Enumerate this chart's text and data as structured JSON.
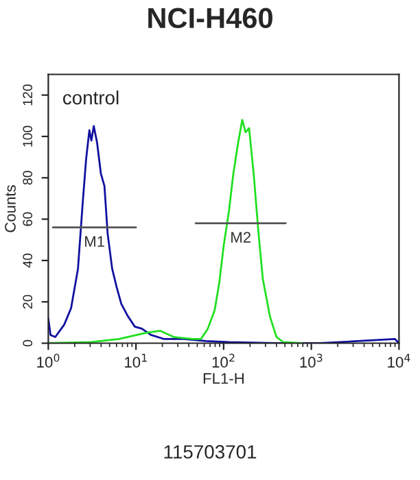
{
  "chart_data": {
    "type": "line",
    "title": "NCI-H460",
    "xlabel": "FL1-H",
    "ylabel": "Counts",
    "log": "x",
    "grid": false,
    "legend": false,
    "marker": "none",
    "line_style": "solid",
    "xlim": [
      1,
      10000
    ],
    "xticks": [
      {
        "value": 1,
        "label": "10$^{0}$"
      },
      {
        "value": 10,
        "label": "10$^{1}$"
      },
      {
        "value": 100,
        "label": "10$^{2}$"
      },
      {
        "value": 1000,
        "label": "10$^{3}$"
      },
      {
        "value": 10000,
        "label": "10$^{4}$"
      }
    ],
    "ylim": [
      0,
      130
    ],
    "yticks": [
      0,
      20,
      40,
      60,
      80,
      100,
      120
    ],
    "series": [
      {
        "color": "#1010a0",
        "x": [
          1.0,
          1.06,
          1.2,
          1.52,
          1.82,
          2.18,
          2.46,
          2.7,
          2.94,
          3.1,
          3.3,
          3.6,
          3.98,
          4.37,
          4.75,
          5.35,
          6.03,
          6.8,
          8.1,
          9.7,
          11.7,
          14.8,
          21,
          35,
          63,
          115,
          380,
          1260,
          9000,
          10000
        ],
        "values": [
          12,
          4,
          3,
          9,
          17,
          36,
          67,
          89,
          103,
          98,
          105,
          97,
          82,
          76,
          53,
          36,
          27,
          19,
          13,
          8,
          7,
          4,
          2,
          2,
          1,
          0.5,
          0,
          0,
          2,
          0
        ]
      },
      {
        "color": "#20e020",
        "x": [
          1.0,
          3.1,
          6.4,
          13,
          19,
          27,
          44,
          55,
          66,
          79,
          89,
          100,
          115,
          129,
          145,
          163,
          178,
          195,
          220,
          250,
          280,
          337,
          400,
          480,
          780
        ],
        "values": [
          0,
          0.5,
          2,
          5,
          6,
          3,
          2,
          2,
          7,
          16,
          29,
          47,
          64,
          82,
          96,
          108,
          102,
          104,
          82,
          53,
          31,
          13,
          3,
          0.5,
          0
        ]
      },
      {
        "name": "M1",
        "color": "#555555",
        "x": [
          1.13,
          10
        ],
        "values": [
          56,
          56
        ]
      },
      {
        "name": "M2",
        "color": "#555555",
        "x": [
          48,
          510
        ],
        "values": [
          58,
          58
        ]
      }
    ],
    "annotations": [
      "control",
      "115703701"
    ]
  }
}
